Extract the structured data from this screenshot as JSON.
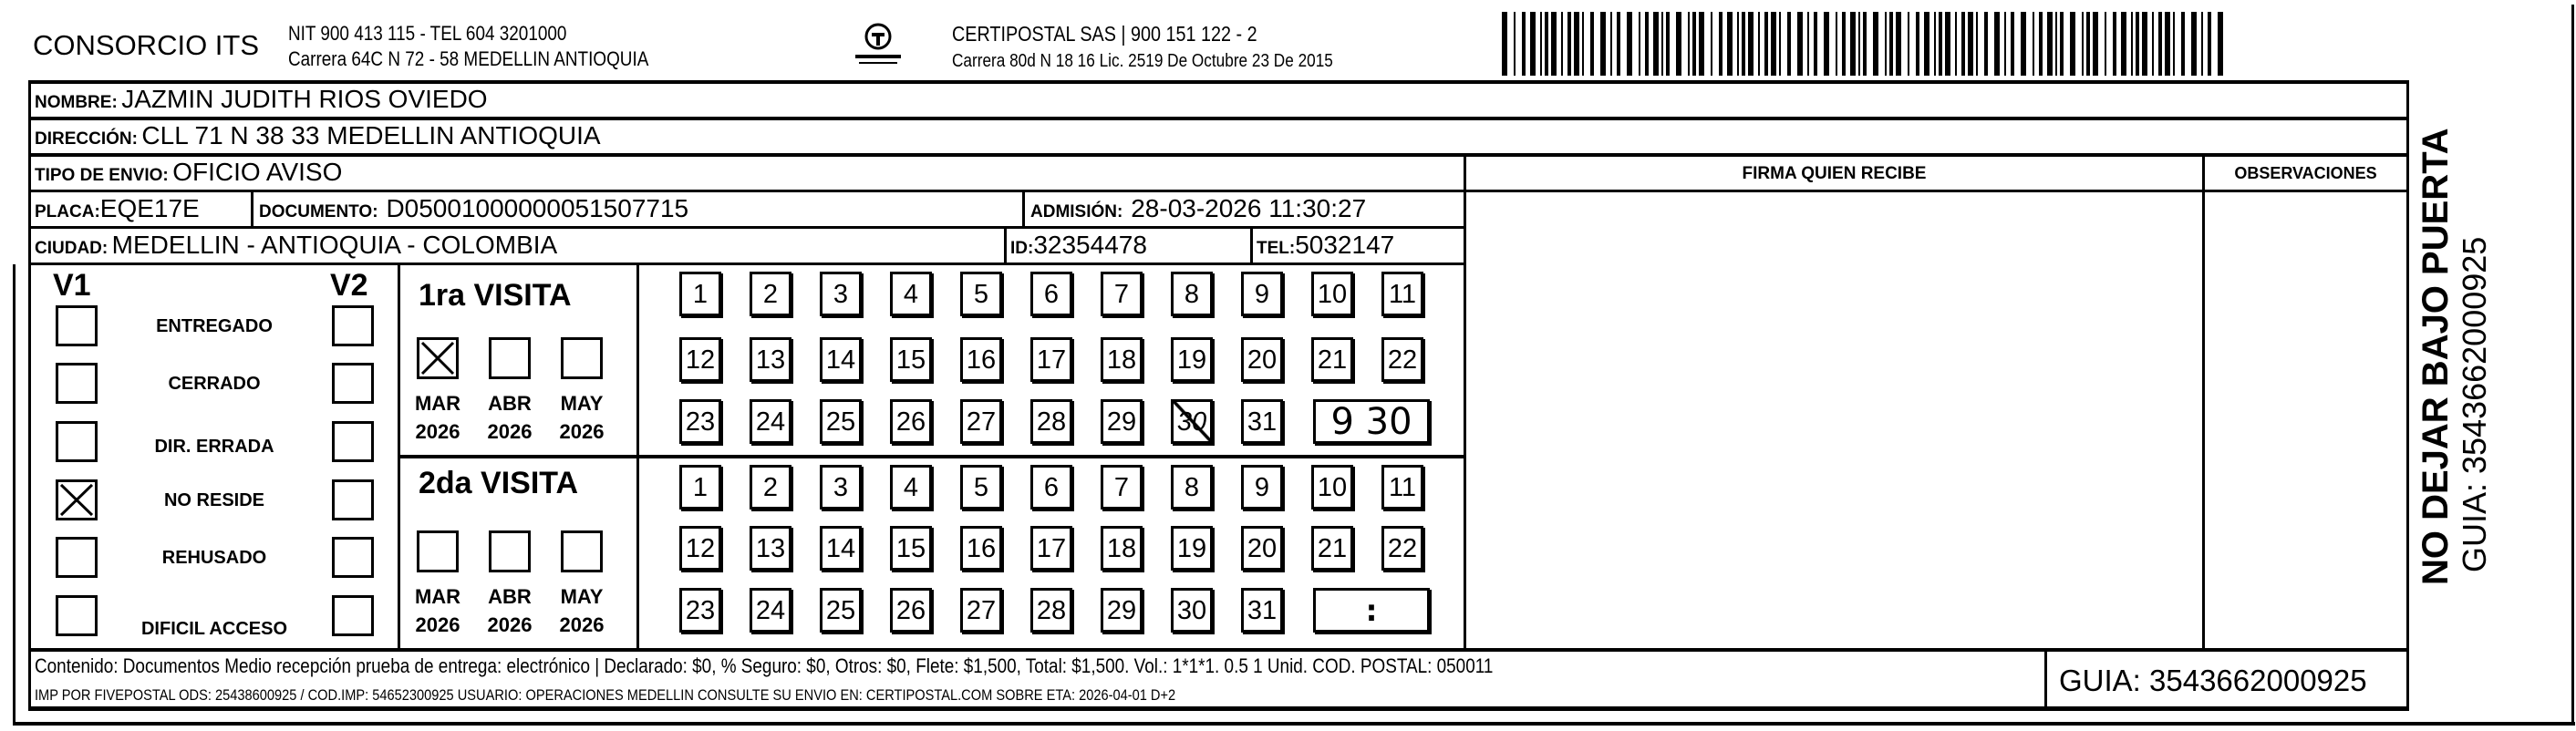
{
  "header": {
    "company": "CONSORCIO ITS",
    "company_line1": "NIT 900 413 115 - TEL 604 3201000",
    "company_line2": "Carrera 64C N 72 - 58 MEDELLIN ANTIOQUIA",
    "logo_text": "CERTIPOSTAL",
    "carrier_line1": "CERTIPOSTAL SAS | 900 151 122 - 2",
    "carrier_line2": "Carrera 80d N 18 16  Lic. 2519 De Octubre 23 De 2015",
    "barcode_icon": "barcode"
  },
  "recipient": {
    "nombre_label": "NOMBRE:",
    "nombre": "JAZMIN JUDITH RIOS OVIEDO",
    "direccion_label": "DIRECCIÓN:",
    "direccion": "CLL 71 N 38 33 MEDELLIN ANTIOQUIA",
    "tipo_label": "TIPO DE ENVIO:",
    "tipo": "OFICIO AVISO",
    "placa_label": "PLACA:",
    "placa": "EQE17E",
    "documento_label": "DOCUMENTO:",
    "documento": "D05001000000051507715",
    "admision_label": "ADMISIÓN:",
    "admision": "28-03-2026 11:30:27",
    "ciudad_label": "CIUDAD:",
    "ciudad": "MEDELLIN - ANTIOQUIA - COLOMBIA",
    "id_label": "ID:",
    "id": "32354478",
    "tel_label": "TEL:",
    "tel": "5032147"
  },
  "signature": {
    "firma_label": "FIRMA QUIEN RECIBE",
    "observaciones_label": "OBSERVACIONES"
  },
  "status": {
    "v1_label": "V1",
    "v2_label": "V2",
    "options": [
      {
        "label": "ENTREGADO",
        "v1": false,
        "v2": false
      },
      {
        "label": "CERRADO",
        "v1": false,
        "v2": false
      },
      {
        "label": "DIR. ERRADA",
        "v1": false,
        "v2": false
      },
      {
        "label": "NO RESIDE",
        "v1": true,
        "v2": false
      },
      {
        "label": "REHUSADO",
        "v1": false,
        "v2": false
      },
      {
        "label": "DIFICIL ACCESO",
        "v1": false,
        "v2": false
      }
    ]
  },
  "visits": [
    {
      "title": "1ra VISITA",
      "months": [
        {
          "label": "MAR",
          "year": "2026",
          "checked": true
        },
        {
          "label": "ABR",
          "year": "2026",
          "checked": false
        },
        {
          "label": "MAY",
          "year": "2026",
          "checked": false
        }
      ],
      "days": [
        "1",
        "2",
        "3",
        "4",
        "5",
        "6",
        "7",
        "8",
        "9",
        "10",
        "11",
        "12",
        "13",
        "14",
        "15",
        "16",
        "17",
        "18",
        "19",
        "20",
        "21",
        "22",
        "23",
        "24",
        "25",
        "26",
        "27",
        "28",
        "29",
        "30",
        "31"
      ],
      "crossed_day": "30",
      "time": "9 30"
    },
    {
      "title": "2da VISITA",
      "months": [
        {
          "label": "MAR",
          "year": "2026",
          "checked": false
        },
        {
          "label": "ABR",
          "year": "2026",
          "checked": false
        },
        {
          "label": "MAY",
          "year": "2026",
          "checked": false
        }
      ],
      "days": [
        "1",
        "2",
        "3",
        "4",
        "5",
        "6",
        "7",
        "8",
        "9",
        "10",
        "11",
        "12",
        "13",
        "14",
        "15",
        "16",
        "17",
        "18",
        "19",
        "20",
        "21",
        "22",
        "23",
        "24",
        "25",
        "26",
        "27",
        "28",
        "29",
        "30",
        "31"
      ],
      "crossed_day": null,
      "time": ":"
    }
  ],
  "footer": {
    "line1": "Contenido: Documentos Medio recepción prueba de entrega: electrónico | Declarado: $0, % Seguro: $0, Otros: $0, Flete: $1,500, Total: $1,500. Vol.: 1*1*1. 0.5  1 Unid. COD. POSTAL: 050011",
    "line2": "IMP POR FIVEPOSTAL ODS: 25438600925 / COD.IMP: 54652300925 USUARIO: OPERACIONES MEDELLIN CONSULTE SU ENVIO EN: CERTIPOSTAL.COM SOBRE ETA: 2026-04-01 D+2",
    "guia": "GUIA: 3543662000925"
  },
  "side": {
    "warning": "NO DEJAR BAJO PUERTA",
    "guia": "GUIA: 3543662000925"
  }
}
